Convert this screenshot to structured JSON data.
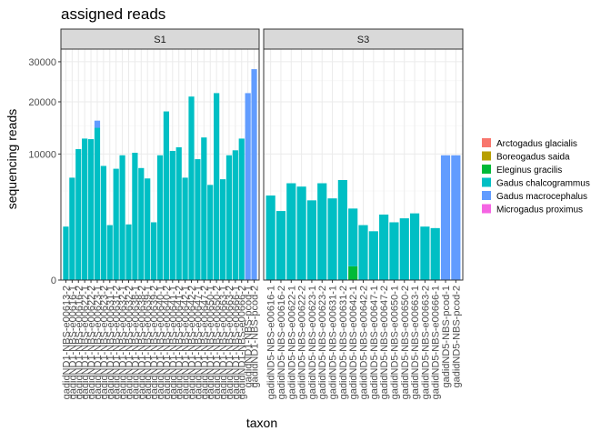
{
  "chart_data": {
    "type": "bar",
    "stacked": true,
    "title": "assigned reads",
    "xlabel": "taxon",
    "ylabel": "sequencing reads",
    "y_scale": "sqrt",
    "y_ticks": [
      0,
      10000,
      20000,
      30000
    ],
    "y_tick_labels": [
      "0",
      "10000",
      "20000",
      "30000"
    ],
    "ylim": [
      0,
      31500
    ],
    "grid": true,
    "legend_position": "right",
    "legend": [
      {
        "name": "Arctogadus glacialis",
        "color": "#F8766D"
      },
      {
        "name": "Boreogadus saida",
        "color": "#B79F00"
      },
      {
        "name": "Eleginus gracilis",
        "color": "#00BA38"
      },
      {
        "name": "Gadus chalcogrammus",
        "color": "#00BFC4"
      },
      {
        "name": "Gadus macrocephalus",
        "color": "#619CFF"
      },
      {
        "name": "Microgadus proximus",
        "color": "#F564E3"
      }
    ],
    "panels": [
      {
        "strip": "S1",
        "categories": [
          "gadidND1-NBS-e00613-2",
          "gadidND1-NBS-e00616-1",
          "gadidND1-NBS-e00616-2",
          "gadidND1-NBS-e00622-1",
          "gadidND1-NBS-e00622-2",
          "gadidND1-NBS-e00623-1",
          "gadidND1-NBS-e00623-2",
          "gadidND1-NBS-e00631-1",
          "gadidND1-NBS-e00631-2",
          "gadidND1-NBS-e00632-1",
          "gadidND1-NBS-e00632-2",
          "gadidND1-NBS-e00638-1",
          "gadidND1-NBS-e00638-2",
          "gadidND1-NBS-e00639-1",
          "gadidND1-NBS-e00639-2",
          "gadidND1-NBS-e00640-1",
          "gadidND1-NBS-e00640-2",
          "gadidND1-NBS-e00641-1",
          "gadidND1-NBS-e00641-2",
          "gadidND1-NBS-e00642-1",
          "gadidND1-NBS-e00642-2",
          "gadidND1-NBS-e00647-1",
          "gadidND1-NBS-e00647-2",
          "gadidND1-NBS-e00650-1",
          "gadidND1-NBS-e00650-2",
          "gadidND1-NBS-e00663-1",
          "gadidND1-NBS-e00663-2",
          "gadidND1-NBS-e00666-1",
          "gadidND1-NBS-e00666-2",
          "gadidND1-NBS-pcod-1",
          "gadidND1-NBS-pcod-2"
        ],
        "series": [
          {
            "name": "Eleginus gracilis",
            "values": [
              0,
              0,
              0,
              0,
              0,
              0,
              0,
              0,
              0,
              0,
              0,
              0,
              0,
              0,
              0,
              0,
              0,
              0,
              0,
              0,
              0,
              0,
              0,
              0,
              0,
              0,
              0,
              0,
              0,
              0,
              0
            ]
          },
          {
            "name": "Gadus chalcogrammus",
            "values": [
              1800,
              6600,
              10800,
              12600,
              12500,
              14600,
              8200,
              1900,
              7800,
              9800,
              1950,
              10200,
              7900,
              6500,
              2100,
              9800,
              17900,
              10500,
              11100,
              6600,
              21200,
              9200,
              12800,
              5700,
              22000,
              6400,
              9800,
              10600,
              12600,
              0,
              0
            ]
          },
          {
            "name": "Gadus macrocephalus",
            "values": [
              0,
              0,
              0,
              0,
              0,
              1400,
              0,
              0,
              0,
              0,
              0,
              0,
              0,
              0,
              0,
              0,
              0,
              0,
              0,
              0,
              0,
              0,
              0,
              0,
              0,
              0,
              0,
              0,
              0,
              22000,
              28000
            ]
          }
        ]
      },
      {
        "strip": "S3",
        "categories": [
          "gadidND5-NBS-e00616-1",
          "gadidND5-NBS-e00616-2",
          "gadidND5-NBS-e00622-1",
          "gadidND5-NBS-e00622-2",
          "gadidND5-NBS-e00623-1",
          "gadidND5-NBS-e00623-2",
          "gadidND5-NBS-e00631-1",
          "gadidND5-NBS-e00631-2",
          "gadidND5-NBS-e00642-1",
          "gadidND5-NBS-e00642-2",
          "gadidND5-NBS-e00647-1",
          "gadidND5-NBS-e00647-2",
          "gadidND5-NBS-e00650-1",
          "gadidND5-NBS-e00650-2",
          "gadidND5-NBS-e00663-1",
          "gadidND5-NBS-e00663-2",
          "gadidND5-NBS-e00666-1",
          "gadidND5-NBS-pcod-1",
          "gadidND5-NBS-pcod-2"
        ],
        "series": [
          {
            "name": "Eleginus gracilis",
            "values": [
              0,
              0,
              0,
              0,
              0,
              0,
              0,
              0,
              120,
              0,
              0,
              0,
              0,
              0,
              0,
              0,
              0,
              0,
              0
            ]
          },
          {
            "name": "Gadus chalcogrammus",
            "values": [
              4500,
              3000,
              5900,
              5500,
              4000,
              5900,
              4200,
              6300,
              3100,
              1900,
              1500,
              2700,
              2100,
              2400,
              2800,
              1800,
              1700,
              0,
              0
            ]
          },
          {
            "name": "Gadus macrocephalus",
            "values": [
              0,
              0,
              0,
              0,
              0,
              0,
              0,
              0,
              0,
              0,
              0,
              0,
              0,
              0,
              0,
              0,
              0,
              9800,
              9800
            ]
          }
        ]
      }
    ]
  }
}
